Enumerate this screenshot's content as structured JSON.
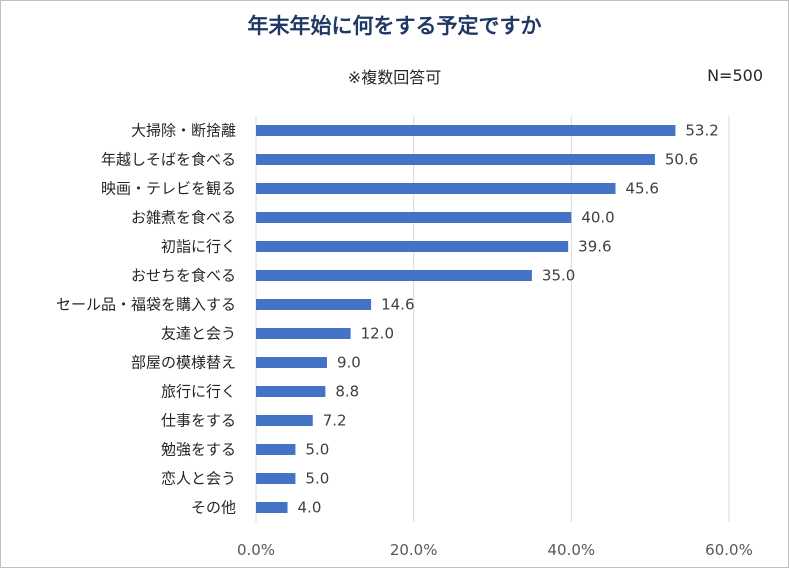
{
  "chart_data": {
    "type": "bar",
    "orientation": "horizontal",
    "title": "年末年始に何をする予定ですか",
    "subtitle": "※複数回答可",
    "sample": "N=500",
    "categories": [
      "大掃除・断捨離",
      "年越しそばを食べる",
      "映画・テレビを観る",
      "お雑煮を食べる",
      "初詣に行く",
      "おせちを食べる",
      "セール品・福袋を購入する",
      "友達と会う",
      "部屋の模様替え",
      "旅行に行く",
      "仕事をする",
      "勉強をする",
      "恋人と会う",
      "その他"
    ],
    "values": [
      53.2,
      50.6,
      45.6,
      40.0,
      39.6,
      35.0,
      14.6,
      12.0,
      9.0,
      8.8,
      7.2,
      5.0,
      5.0,
      4.0
    ],
    "value_labels": [
      "53.2",
      "50.6",
      "45.6",
      "40.0",
      "39.6",
      "35.0",
      "14.6",
      "12.0",
      "9.0",
      "8.8",
      "7.2",
      "5.0",
      "5.0",
      "4.0"
    ],
    "xlim": [
      0,
      60
    ],
    "xticks": [
      0,
      20,
      40,
      60
    ],
    "xtick_labels": [
      "0.0%",
      "20.0%",
      "40.0%",
      "60.0%"
    ],
    "grid": true,
    "bar_color": "#4472c4"
  }
}
